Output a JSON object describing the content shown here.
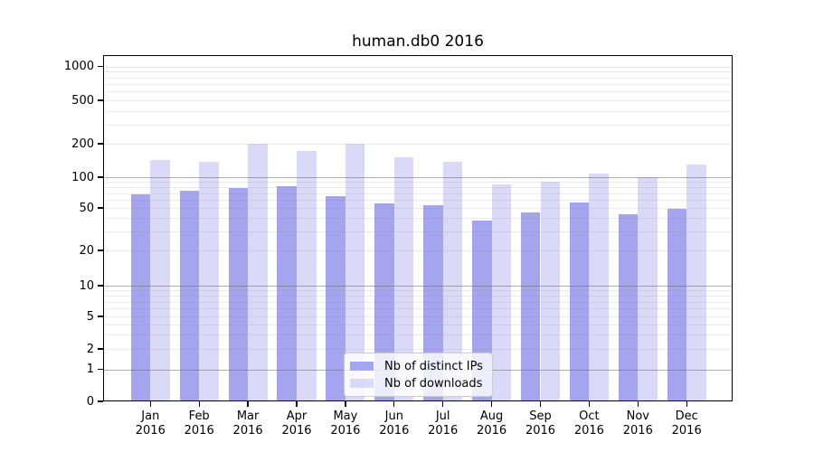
{
  "chart_data": {
    "type": "bar",
    "title": "human.db0 2016",
    "categories": [
      "Jan 2016",
      "Feb 2016",
      "Mar 2016",
      "Apr 2016",
      "May 2016",
      "Jun 2016",
      "Jul 2016",
      "Aug 2016",
      "Sep 2016",
      "Oct 2016",
      "Nov 2016",
      "Dec 2016"
    ],
    "x_tick_months": [
      "Jan",
      "Feb",
      "Mar",
      "Apr",
      "May",
      "Jun",
      "Jul",
      "Aug",
      "Sep",
      "Oct",
      "Nov",
      "Dec"
    ],
    "x_tick_year": "2016",
    "series": [
      {
        "name": "Nb of distinct IPs",
        "color": "#a5a5ef",
        "values": [
          68,
          74,
          79,
          82,
          65,
          55,
          53,
          38,
          45,
          57,
          44,
          49
        ]
      },
      {
        "name": "Nb of downloads",
        "color": "#dadaf8",
        "values": [
          144,
          137,
          200,
          173,
          200,
          150,
          138,
          85,
          90,
          108,
          101,
          130
        ]
      }
    ],
    "ylim": [
      0,
      1000
    ],
    "yscale": "log-with-zero-baseline",
    "yticks": [
      0,
      1,
      2,
      5,
      10,
      20,
      50,
      100,
      200,
      500,
      1000
    ],
    "ytick_labels": [
      "0",
      "1",
      "2",
      "5",
      "10",
      "20",
      "50",
      "100",
      "200",
      "500",
      "1000"
    ],
    "major_gridline_values": [
      1,
      10,
      100
    ],
    "minor_gridline_values": [
      2,
      3,
      4,
      5,
      6,
      7,
      8,
      9,
      20,
      30,
      40,
      50,
      60,
      70,
      80,
      90,
      200,
      300,
      400,
      500,
      600,
      700,
      800,
      900,
      1000
    ],
    "grid": true,
    "legend_position": "bottom-center-inside",
    "frame_color": "#000000",
    "background_color": "#ffffff"
  }
}
